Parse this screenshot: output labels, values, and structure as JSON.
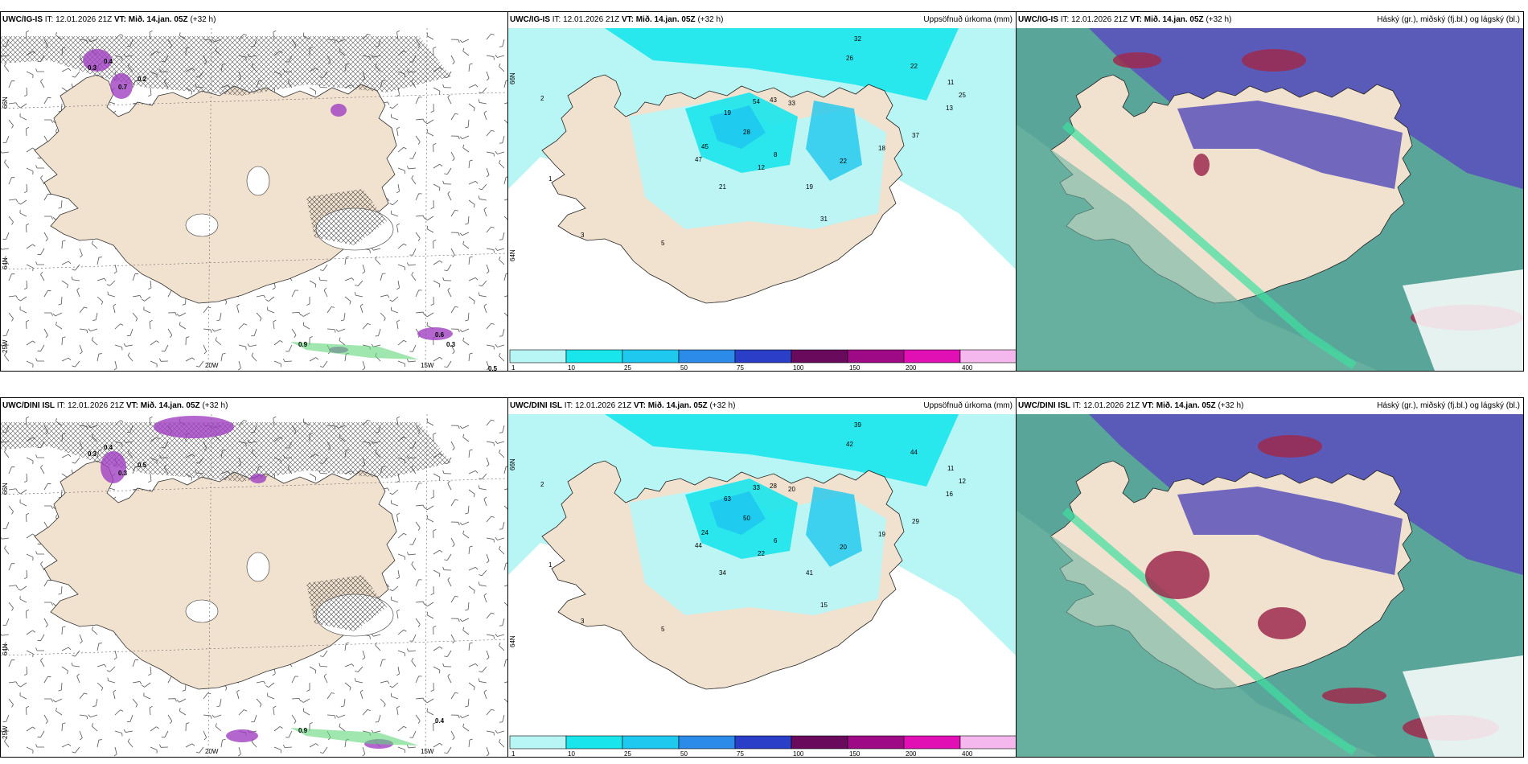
{
  "panels": [
    {
      "model": "UWC/IG-IS",
      "it": "IT: 12.01.2026 21Z",
      "vt_label": "VT:",
      "vt": "Mið. 14.jan. 05Z",
      "lead": "(+32 h)",
      "right": "",
      "kind": "wind",
      "lat_labels": [
        "66N",
        "64N",
        "25W"
      ],
      "lon_labels": [
        "20W",
        "15W"
      ],
      "values": [
        "0.4",
        "0.7",
        "0.2",
        "0.3",
        "0.9",
        "0.6",
        "0.3",
        "0.5"
      ]
    },
    {
      "model": "UWC/IG-IS",
      "it": "IT: 12.01.2026 21Z",
      "vt_label": "VT:",
      "vt": "Mið. 14.jan. 05Z",
      "lead": "(+32 h)",
      "right": "Uppsöfnuð úrkoma (mm)",
      "kind": "precip",
      "lat_labels": [
        "66N",
        "64N"
      ],
      "values": [
        "32",
        "26",
        "22",
        "54",
        "43",
        "33",
        "19",
        "28",
        "45",
        "47",
        "21",
        "12",
        "31",
        "19",
        "22",
        "37",
        "18",
        "13",
        "25",
        "11",
        "8",
        "5",
        "3",
        "2",
        "1"
      ]
    },
    {
      "model": "UWC/IG-IS",
      "it": "IT: 12.01.2026 21Z",
      "vt_label": "VT:",
      "vt": "Mið. 14.jan. 05Z",
      "lead": "(+32 h)",
      "right": "Háský (gr.), miðský (fj.bl.) og lágský (bl.)",
      "kind": "cloud"
    },
    {
      "model": "UWC/DINI ISL",
      "it": "IT: 12.01.2026 21Z",
      "vt_label": "VT:",
      "vt": "Mið. 14.jan. 05Z",
      "lead": "(+32 h)",
      "right": "",
      "kind": "wind",
      "lat_labels": [
        "66N",
        "64N",
        "25W"
      ],
      "lon_labels": [
        "20W",
        "15W"
      ],
      "values": [
        "0.4",
        "0.3",
        "0.5",
        "0.3",
        "0.9",
        "0.4"
      ]
    },
    {
      "model": "UWC/DINI ISL",
      "it": "IT: 12.01.2026 21Z",
      "vt_label": "VT:",
      "vt": "Mið. 14.jan. 05Z",
      "lead": "(+32 h)",
      "right": "Uppsöfnuð úrkoma (mm)",
      "kind": "precip",
      "lat_labels": [
        "66N",
        "64N"
      ],
      "values": [
        "39",
        "42",
        "44",
        "33",
        "28",
        "20",
        "63",
        "50",
        "24",
        "44",
        "34",
        "22",
        "15",
        "41",
        "20",
        "29",
        "19",
        "16",
        "12",
        "11",
        "6",
        "5",
        "3",
        "2",
        "1"
      ]
    },
    {
      "model": "UWC/DINI ISL",
      "it": "IT: 12.01.2026 21Z",
      "vt_label": "VT:",
      "vt": "Mið. 14.jan. 05Z",
      "lead": "(+32 h)",
      "right": "Háský (gr.), miðský (fj.bl.) og lágský (bl.)",
      "kind": "cloud"
    }
  ],
  "legend": {
    "labels": [
      "1",
      "10",
      "25",
      "50",
      "75",
      "100",
      "150",
      "200",
      "400"
    ],
    "colors": [
      "#b8f5f5",
      "#18e6ec",
      "#1ec8ee",
      "#2c8ae8",
      "#2a3ec8",
      "#6a0a5c",
      "#9e0a86",
      "#e010b4",
      "#f4b8ee"
    ]
  },
  "colors": {
    "land": "#f1e1cf",
    "precip_light": "#b8f5f5",
    "precip_mid": "#18e6ec",
    "precip_high": "#1ec8ee",
    "cloud_sea": "#5aa59a",
    "cloud_high": "#5a52bb",
    "cloud_low": "#9e2a4e",
    "magenta": "#a040c0"
  }
}
